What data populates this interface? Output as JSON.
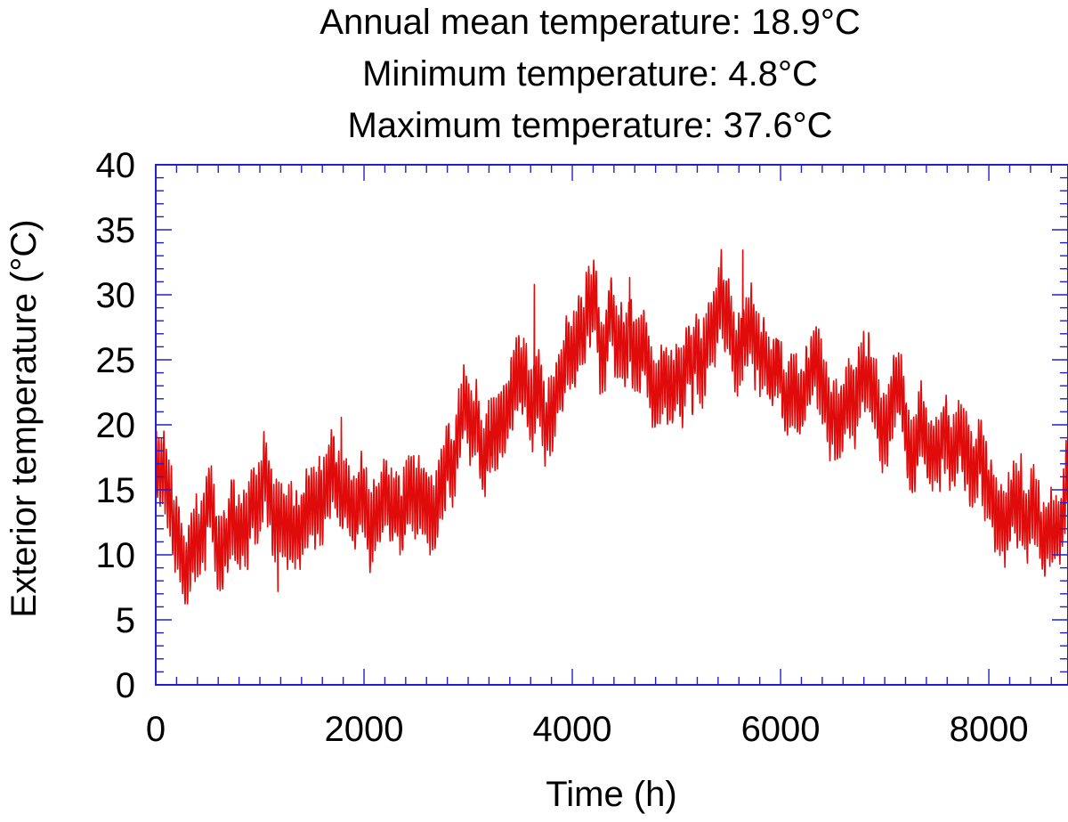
{
  "chart_data": {
    "type": "line",
    "title_lines": [
      "Annual mean temperature: 18.9°C",
      "Minimum temperature: 4.8°C",
      "Maximum temperature:  37.6°C"
    ],
    "xlabel": "Time (h)",
    "ylabel": "Exterior temperature (°C)",
    "xlim": [
      0,
      8760
    ],
    "ylim": [
      0,
      40
    ],
    "x_ticks": [
      0,
      2000,
      4000,
      6000,
      8000
    ],
    "x_tick_labels": [
      "0",
      "2000",
      "4000",
      "6000",
      "8000"
    ],
    "x_minor_step": 200,
    "y_ticks": [
      0,
      5,
      10,
      15,
      20,
      25,
      30,
      35,
      40
    ],
    "y_tick_labels": [
      "0",
      "5",
      "10",
      "15",
      "20",
      "25",
      "30",
      "35",
      "40"
    ],
    "y_minor_step": 1,
    "grid": false,
    "colors": {
      "series": "#e00c0c",
      "axes": "#1f1fd0"
    },
    "series": [
      {
        "x": [
          0,
          50,
          100,
          150,
          200,
          250,
          300,
          400,
          500,
          600,
          700,
          800,
          900,
          1000,
          1050,
          1100,
          1200,
          1300,
          1400,
          1500,
          1600,
          1700,
          1800,
          1900,
          2000,
          2100,
          2200,
          2300,
          2400,
          2500,
          2600,
          2700,
          2800,
          2850,
          2900,
          3000,
          3100,
          3200,
          3300,
          3400,
          3500,
          3600,
          3700,
          3800,
          3900,
          4000,
          4050,
          4100,
          4200,
          4300,
          4400,
          4500,
          4600,
          4700,
          4800,
          4900,
          5000,
          5100,
          5200,
          5300,
          5400,
          5500,
          5600,
          5700,
          5800,
          5900,
          6000,
          6100,
          6200,
          6300,
          6400,
          6500,
          6600,
          6700,
          6800,
          6900,
          7000,
          7100,
          7200,
          7300,
          7400,
          7500,
          7600,
          7700,
          7800,
          7900,
          8000,
          8100,
          8200,
          8300,
          8400,
          8500,
          8600,
          8700,
          8760
        ],
        "y": [
          16.5,
          15,
          13.5,
          12.5,
          11.5,
          10.5,
          10,
          11.5,
          12.5,
          11.5,
          11.5,
          11,
          10.5,
          10,
          10.5,
          12,
          13,
          13,
          12.5,
          13,
          12.5,
          13.5,
          14.5,
          15,
          15.5,
          15,
          15.5,
          16,
          16.5,
          16.5,
          15.5,
          14.5,
          15,
          15.5,
          18,
          18.5,
          18,
          19,
          20,
          21,
          21.5,
          21,
          21.5,
          22,
          22,
          25,
          25.5,
          25.5,
          26,
          25.5,
          26,
          25.5,
          25,
          25.5,
          26,
          26,
          25.5,
          25,
          25,
          26,
          26.5,
          27,
          27,
          27,
          27,
          26.5,
          25.5,
          24.5,
          23.5,
          23,
          22,
          21.5,
          21.5,
          22.5,
          22.5,
          22,
          21,
          20,
          19,
          16.5,
          17,
          18.5,
          19,
          18,
          17.5,
          16,
          16,
          15,
          15,
          14.5,
          15,
          13.5,
          12,
          11.5,
          13
        ]
      }
    ]
  }
}
